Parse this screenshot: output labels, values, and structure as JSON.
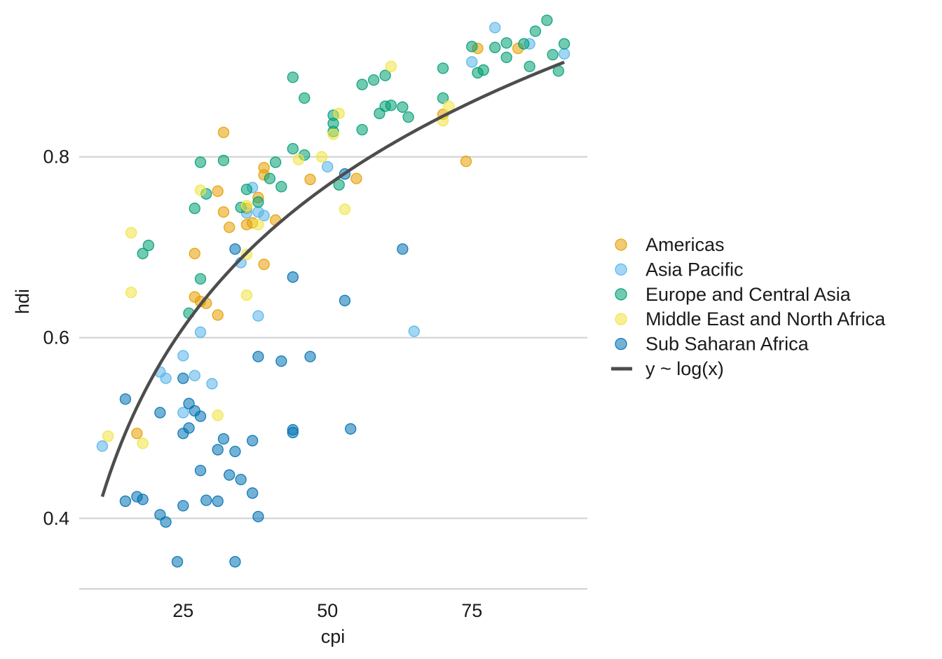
{
  "chart_data": {
    "type": "scatter",
    "title": "",
    "xlabel": "cpi",
    "ylabel": "hdi",
    "xlim": [
      7,
      95
    ],
    "ylim": [
      0.322,
      0.958
    ],
    "x_ticks": [
      25,
      50,
      75
    ],
    "y_ticks": [
      0.4,
      0.6,
      0.8
    ],
    "x_tick_labels": [
      "25",
      "50",
      "75"
    ],
    "y_tick_labels": [
      "0.4",
      "0.6",
      "0.8"
    ],
    "grid": "horizontal major gridlines",
    "legend_position": "right",
    "point_opacity": 0.55,
    "series": [
      {
        "name": "Americas",
        "color": "#E69F00",
        "points": [
          [
            17,
            0.494
          ],
          [
            27,
            0.693
          ],
          [
            27,
            0.645
          ],
          [
            28,
            0.64
          ],
          [
            29,
            0.638
          ],
          [
            31,
            0.625
          ],
          [
            31,
            0.762
          ],
          [
            32,
            0.739
          ],
          [
            32,
            0.827
          ],
          [
            33,
            0.722
          ],
          [
            36,
            0.725
          ],
          [
            36,
            0.743
          ],
          [
            37,
            0.727
          ],
          [
            38,
            0.755
          ],
          [
            39,
            0.788
          ],
          [
            39,
            0.78
          ],
          [
            39,
            0.681
          ],
          [
            41,
            0.73
          ],
          [
            47,
            0.775
          ],
          [
            55,
            0.776
          ],
          [
            70,
            0.847
          ],
          [
            74,
            0.795
          ],
          [
            76,
            0.92
          ],
          [
            83,
            0.92
          ]
        ]
      },
      {
        "name": "Asia Pacific",
        "color": "#56B4E9",
        "points": [
          [
            11,
            0.48
          ],
          [
            21,
            0.562
          ],
          [
            22,
            0.555
          ],
          [
            25,
            0.517
          ],
          [
            25,
            0.58
          ],
          [
            27,
            0.558
          ],
          [
            28,
            0.606
          ],
          [
            30,
            0.549
          ],
          [
            35,
            0.683
          ],
          [
            36,
            0.738
          ],
          [
            37,
            0.766
          ],
          [
            38,
            0.739
          ],
          [
            38,
            0.624
          ],
          [
            39,
            0.735
          ],
          [
            50,
            0.789
          ],
          [
            65,
            0.607
          ],
          [
            75,
            0.905
          ],
          [
            79,
            0.943
          ],
          [
            85,
            0.925
          ],
          [
            91,
            0.914
          ]
        ]
      },
      {
        "name": "Europe and Central Asia",
        "color": "#009E73",
        "points": [
          [
            18,
            0.693
          ],
          [
            19,
            0.702
          ],
          [
            26,
            0.627
          ],
          [
            27,
            0.743
          ],
          [
            28,
            0.665
          ],
          [
            28,
            0.794
          ],
          [
            29,
            0.759
          ],
          [
            32,
            0.796
          ],
          [
            35,
            0.744
          ],
          [
            36,
            0.764
          ],
          [
            38,
            0.75
          ],
          [
            40,
            0.776
          ],
          [
            41,
            0.794
          ],
          [
            42,
            0.767
          ],
          [
            44,
            0.888
          ],
          [
            44,
            0.809
          ],
          [
            46,
            0.865
          ],
          [
            46,
            0.802
          ],
          [
            51,
            0.846
          ],
          [
            51,
            0.837
          ],
          [
            51,
            0.828
          ],
          [
            52,
            0.769
          ],
          [
            56,
            0.88
          ],
          [
            56,
            0.83
          ],
          [
            58,
            0.885
          ],
          [
            59,
            0.848
          ],
          [
            60,
            0.856
          ],
          [
            60,
            0.89
          ],
          [
            61,
            0.857
          ],
          [
            63,
            0.855
          ],
          [
            64,
            0.844
          ],
          [
            70,
            0.865
          ],
          [
            70,
            0.898
          ],
          [
            75,
            0.922
          ],
          [
            76,
            0.893
          ],
          [
            77,
            0.896
          ],
          [
            79,
            0.921
          ],
          [
            81,
            0.91
          ],
          [
            81,
            0.926
          ],
          [
            84,
            0.925
          ],
          [
            85,
            0.9
          ],
          [
            86,
            0.939
          ],
          [
            88,
            0.951
          ],
          [
            89,
            0.913
          ],
          [
            90,
            0.895
          ],
          [
            91,
            0.925
          ]
        ]
      },
      {
        "name": "Middle East and North Africa",
        "color": "#F0E442",
        "points": [
          [
            12,
            0.491
          ],
          [
            16,
            0.716
          ],
          [
            16,
            0.65
          ],
          [
            18,
            0.483
          ],
          [
            28,
            0.763
          ],
          [
            31,
            0.514
          ],
          [
            36,
            0.746
          ],
          [
            36,
            0.692
          ],
          [
            36,
            0.647
          ],
          [
            38,
            0.725
          ],
          [
            45,
            0.797
          ],
          [
            49,
            0.8
          ],
          [
            51,
            0.825
          ],
          [
            52,
            0.848
          ],
          [
            53,
            0.742
          ],
          [
            61,
            0.9
          ],
          [
            70,
            0.84
          ],
          [
            71,
            0.856
          ]
        ]
      },
      {
        "name": "Sub Saharan Africa",
        "color": "#0072B2",
        "points": [
          [
            15,
            0.532
          ],
          [
            15,
            0.419
          ],
          [
            17,
            0.424
          ],
          [
            18,
            0.421
          ],
          [
            21,
            0.517
          ],
          [
            21,
            0.404
          ],
          [
            22,
            0.396
          ],
          [
            24,
            0.352
          ],
          [
            25,
            0.555
          ],
          [
            25,
            0.494
          ],
          [
            25,
            0.414
          ],
          [
            26,
            0.527
          ],
          [
            26,
            0.5
          ],
          [
            27,
            0.519
          ],
          [
            28,
            0.513
          ],
          [
            28,
            0.453
          ],
          [
            29,
            0.42
          ],
          [
            31,
            0.476
          ],
          [
            31,
            0.419
          ],
          [
            32,
            0.488
          ],
          [
            33,
            0.448
          ],
          [
            34,
            0.698
          ],
          [
            34,
            0.474
          ],
          [
            34,
            0.352
          ],
          [
            35,
            0.443
          ],
          [
            37,
            0.486
          ],
          [
            37,
            0.428
          ],
          [
            38,
            0.579
          ],
          [
            38,
            0.402
          ],
          [
            42,
            0.574
          ],
          [
            44,
            0.667
          ],
          [
            44,
            0.498
          ],
          [
            44,
            0.495
          ],
          [
            47,
            0.579
          ],
          [
            53,
            0.641
          ],
          [
            53,
            0.781
          ],
          [
            54,
            0.499
          ],
          [
            63,
            0.698
          ]
        ]
      }
    ],
    "fit": {
      "name": "y ~ log(x)",
      "color": "#4d4d4d",
      "model": "y = a + b*log(x)",
      "a": -0.1215,
      "b": 0.2275,
      "x_range": [
        11,
        91
      ]
    }
  }
}
